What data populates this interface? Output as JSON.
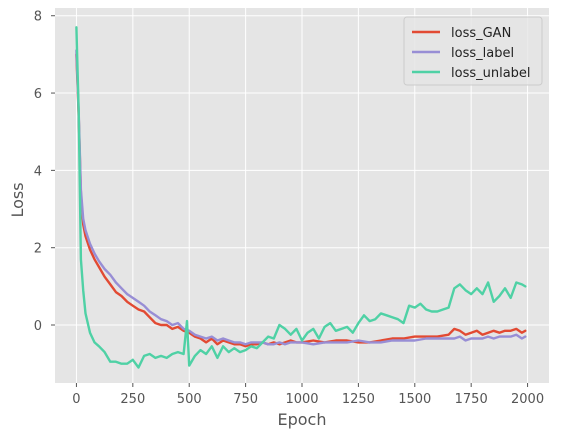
{
  "chart_data": {
    "type": "line",
    "title": "",
    "xlabel": "Epoch",
    "ylabel": "Loss",
    "xlim": [
      -95,
      2095
    ],
    "ylim": [
      -1.5,
      8.2
    ],
    "xticks": [
      0,
      250,
      500,
      750,
      1000,
      1250,
      1500,
      1750,
      2000
    ],
    "yticks": [
      0,
      2,
      4,
      6,
      8
    ],
    "grid": true,
    "legend_position": "top-right",
    "colors": {
      "background": "#e5e5e5",
      "grid": "#ffffff",
      "text": "#555555"
    },
    "series": [
      {
        "name": "loss_GAN",
        "color": "#e24a33",
        "x": [
          0,
          10,
          20,
          30,
          40,
          60,
          80,
          100,
          125,
          150,
          175,
          200,
          225,
          250,
          275,
          300,
          325,
          350,
          375,
          400,
          425,
          450,
          475,
          500,
          525,
          550,
          575,
          600,
          625,
          650,
          675,
          700,
          725,
          750,
          775,
          800,
          825,
          850,
          875,
          900,
          925,
          950,
          975,
          1000,
          1050,
          1100,
          1150,
          1200,
          1250,
          1300,
          1350,
          1400,
          1450,
          1500,
          1550,
          1600,
          1650,
          1675,
          1700,
          1725,
          1750,
          1775,
          1800,
          1825,
          1850,
          1875,
          1900,
          1925,
          1950,
          1975,
          1990
        ],
        "y": [
          7.0,
          5.4,
          3.4,
          2.6,
          2.3,
          1.95,
          1.7,
          1.5,
          1.25,
          1.05,
          0.85,
          0.75,
          0.6,
          0.5,
          0.4,
          0.35,
          0.2,
          0.05,
          0.0,
          0.0,
          -0.1,
          -0.05,
          -0.15,
          -0.2,
          -0.3,
          -0.35,
          -0.45,
          -0.35,
          -0.5,
          -0.4,
          -0.45,
          -0.5,
          -0.5,
          -0.55,
          -0.5,
          -0.5,
          -0.45,
          -0.5,
          -0.45,
          -0.5,
          -0.45,
          -0.4,
          -0.45,
          -0.45,
          -0.4,
          -0.45,
          -0.4,
          -0.4,
          -0.45,
          -0.45,
          -0.4,
          -0.35,
          -0.35,
          -0.3,
          -0.3,
          -0.3,
          -0.25,
          -0.1,
          -0.15,
          -0.25,
          -0.2,
          -0.15,
          -0.25,
          -0.2,
          -0.15,
          -0.2,
          -0.15,
          -0.15,
          -0.1,
          -0.2,
          -0.15
        ]
      },
      {
        "name": "loss_label",
        "color": "#988ed5",
        "x": [
          0,
          10,
          20,
          30,
          40,
          60,
          80,
          100,
          125,
          150,
          175,
          200,
          225,
          250,
          275,
          300,
          325,
          350,
          375,
          400,
          425,
          450,
          475,
          500,
          525,
          550,
          575,
          600,
          625,
          650,
          675,
          700,
          725,
          750,
          775,
          800,
          825,
          850,
          875,
          900,
          925,
          950,
          975,
          1000,
          1050,
          1100,
          1150,
          1200,
          1250,
          1300,
          1350,
          1400,
          1450,
          1500,
          1550,
          1600,
          1650,
          1675,
          1700,
          1725,
          1750,
          1775,
          1800,
          1825,
          1850,
          1875,
          1900,
          1925,
          1950,
          1975,
          1990
        ],
        "y": [
          7.1,
          5.5,
          3.5,
          2.75,
          2.45,
          2.1,
          1.85,
          1.65,
          1.45,
          1.3,
          1.1,
          0.95,
          0.8,
          0.7,
          0.6,
          0.5,
          0.35,
          0.25,
          0.15,
          0.1,
          0.0,
          0.05,
          -0.1,
          -0.15,
          -0.25,
          -0.3,
          -0.35,
          -0.3,
          -0.4,
          -0.35,
          -0.4,
          -0.45,
          -0.45,
          -0.5,
          -0.45,
          -0.45,
          -0.45,
          -0.5,
          -0.5,
          -0.45,
          -0.5,
          -0.45,
          -0.45,
          -0.45,
          -0.5,
          -0.45,
          -0.45,
          -0.45,
          -0.4,
          -0.45,
          -0.45,
          -0.4,
          -0.4,
          -0.4,
          -0.35,
          -0.35,
          -0.35,
          -0.35,
          -0.3,
          -0.4,
          -0.35,
          -0.35,
          -0.35,
          -0.3,
          -0.35,
          -0.3,
          -0.3,
          -0.3,
          -0.25,
          -0.35,
          -0.3
        ]
      },
      {
        "name": "loss_unlabel",
        "color": "#4fd1a5",
        "x": [
          0,
          10,
          20,
          30,
          40,
          60,
          80,
          100,
          125,
          150,
          175,
          200,
          225,
          250,
          275,
          300,
          325,
          350,
          375,
          400,
          425,
          450,
          475,
          490,
          500,
          525,
          550,
          575,
          600,
          625,
          650,
          675,
          700,
          725,
          750,
          775,
          800,
          825,
          850,
          875,
          900,
          925,
          950,
          975,
          1000,
          1025,
          1050,
          1075,
          1100,
          1125,
          1150,
          1175,
          1200,
          1225,
          1250,
          1275,
          1300,
          1325,
          1350,
          1375,
          1400,
          1425,
          1450,
          1475,
          1500,
          1525,
          1550,
          1575,
          1600,
          1625,
          1650,
          1675,
          1700,
          1725,
          1750,
          1775,
          1800,
          1825,
          1850,
          1875,
          1900,
          1925,
          1950,
          1975,
          1990
        ],
        "y": [
          7.7,
          5.5,
          1.7,
          0.9,
          0.3,
          -0.2,
          -0.45,
          -0.55,
          -0.7,
          -0.95,
          -0.95,
          -1.0,
          -1.0,
          -0.9,
          -1.1,
          -0.8,
          -0.75,
          -0.85,
          -0.8,
          -0.85,
          -0.75,
          -0.7,
          -0.75,
          0.1,
          -1.05,
          -0.8,
          -0.65,
          -0.75,
          -0.55,
          -0.85,
          -0.55,
          -0.7,
          -0.6,
          -0.7,
          -0.65,
          -0.55,
          -0.6,
          -0.45,
          -0.3,
          -0.35,
          0.0,
          -0.1,
          -0.25,
          -0.1,
          -0.4,
          -0.2,
          -0.1,
          -0.35,
          -0.05,
          0.05,
          -0.15,
          -0.1,
          -0.05,
          -0.2,
          0.05,
          0.25,
          0.1,
          0.15,
          0.3,
          0.25,
          0.2,
          0.15,
          0.05,
          0.5,
          0.45,
          0.55,
          0.4,
          0.35,
          0.35,
          0.4,
          0.45,
          0.95,
          1.05,
          0.9,
          0.8,
          0.95,
          0.8,
          1.1,
          0.6,
          0.75,
          0.95,
          0.7,
          1.1,
          1.05,
          1.0
        ]
      }
    ]
  }
}
